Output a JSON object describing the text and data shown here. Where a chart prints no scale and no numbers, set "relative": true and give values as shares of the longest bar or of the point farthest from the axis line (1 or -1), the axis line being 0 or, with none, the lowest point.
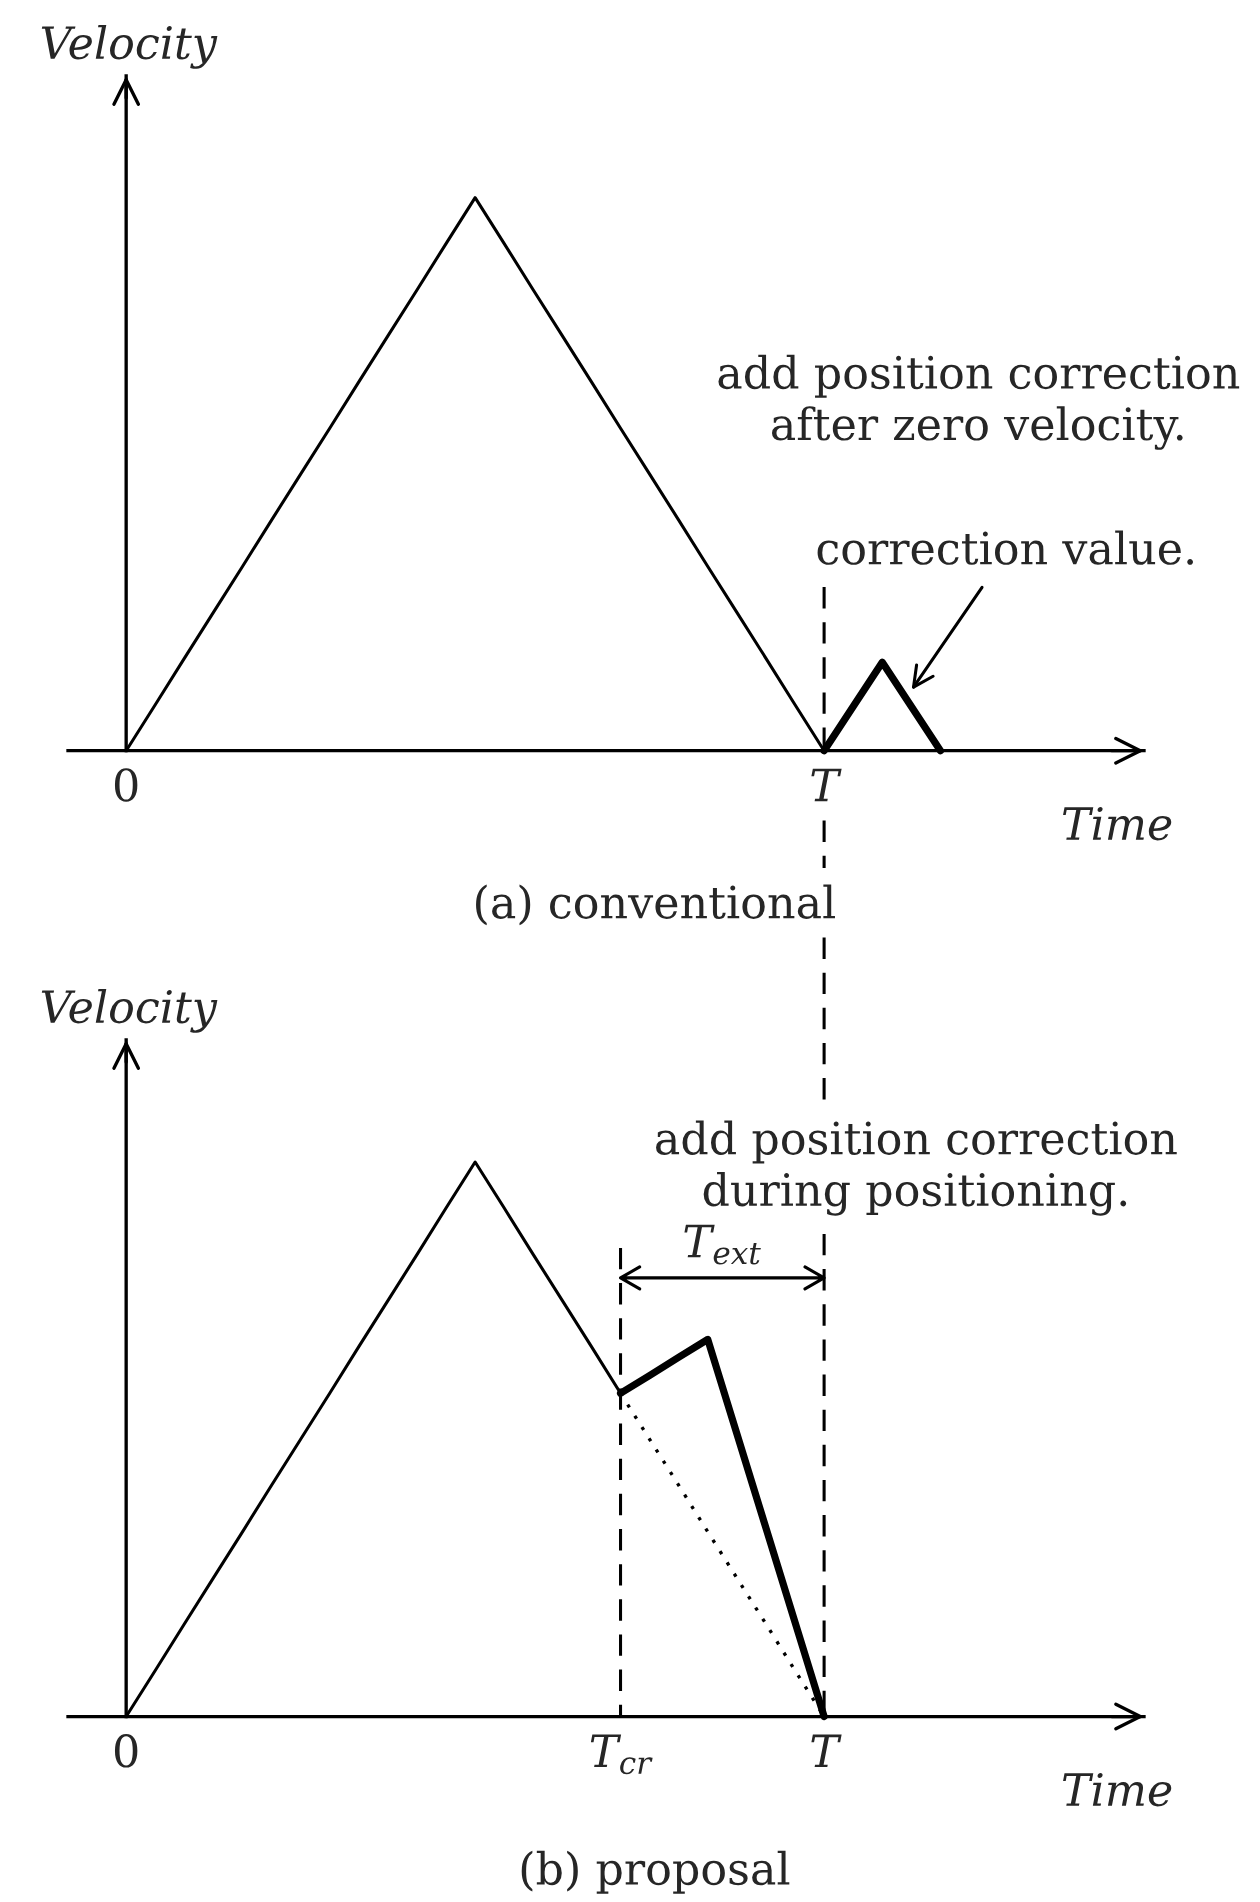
{
  "chart_data": [
    {
      "type": "line",
      "title": "(a) conventional",
      "xlabel": "Time",
      "ylabel": "Velocity",
      "relative": true,
      "tick_labels": "x",
      "line_style": "solid",
      "categories": [
        "0",
        null,
        null,
        null,
        null,
        null,
        null,
        null,
        null,
        null,
        null,
        null,
        null,
        null,
        null,
        null,
        null,
        null,
        null,
        null,
        null,
        null,
        null,
        null,
        "T",
        null,
        null,
        null,
        null,
        null,
        null,
        null,
        null,
        null,
        null,
        null
      ],
      "series": [
        {
          "color": "#000000",
          "values": [
            0,
            0.083,
            0.167,
            0.25,
            0.333,
            0.417,
            0.5,
            0.583,
            0.667,
            0.75,
            0.833,
            0.917,
            1,
            0.917,
            0.833,
            0.75,
            0.667,
            0.583,
            0.5,
            0.417,
            0.333,
            0.25,
            0.167,
            0.083,
            0,
            null,
            null,
            null,
            null,
            null,
            null,
            null,
            null,
            null,
            null,
            null
          ]
        },
        {
          "color": "#000000",
          "values": [
            null,
            null,
            null,
            null,
            null,
            null,
            null,
            null,
            null,
            null,
            null,
            null,
            null,
            null,
            null,
            null,
            null,
            null,
            null,
            null,
            null,
            null,
            null,
            null,
            0,
            0.08,
            0.16,
            0.08,
            0,
            null,
            null,
            null,
            null,
            null,
            null,
            null
          ]
        }
      ],
      "ref_lines": [
        {
          "axis": "x",
          "value": "T",
          "color": "#000000",
          "line_style": "dashed"
        }
      ],
      "annotations": [
        "add position correction\nafter zero velocity.",
        "correction value."
      ]
    },
    {
      "type": "line",
      "title": "(b) proposal",
      "xlabel": "Time",
      "ylabel": "Velocity",
      "relative": true,
      "tick_labels": "x",
      "line_style": "solid",
      "categories": [
        "0",
        null,
        null,
        null,
        null,
        null,
        null,
        null,
        null,
        null,
        null,
        null,
        null,
        null,
        null,
        null,
        null,
        "T$_{cr}$",
        null,
        null,
        null,
        null,
        null,
        null,
        "T",
        null,
        null,
        null,
        null,
        null,
        null,
        null,
        null,
        null,
        null,
        null
      ],
      "series": [
        {
          "color": "#000000",
          "values": [
            0,
            0.083,
            0.167,
            0.25,
            0.333,
            0.417,
            0.5,
            0.583,
            0.667,
            0.75,
            0.833,
            0.917,
            1,
            0.917,
            0.833,
            0.75,
            0.667,
            0.583,
            null,
            null,
            null,
            null,
            null,
            null,
            null,
            null,
            null,
            null,
            null,
            null,
            null,
            null,
            null,
            null,
            null,
            null
          ]
        },
        {
          "color": "#000000",
          "values": [
            null,
            null,
            null,
            null,
            null,
            null,
            null,
            null,
            null,
            null,
            null,
            null,
            null,
            null,
            null,
            null,
            null,
            0.583,
            0.615,
            0.648,
            0.68,
            0.51,
            0.34,
            0.17,
            0,
            null,
            null,
            null,
            null,
            null,
            null,
            null,
            null,
            null,
            null,
            null
          ]
        },
        {
          "color": "#000000",
          "line_style": "dotted",
          "values": [
            null,
            null,
            null,
            null,
            null,
            null,
            null,
            null,
            null,
            null,
            null,
            null,
            null,
            null,
            null,
            null,
            null,
            0.583,
            0.5,
            0.417,
            0.333,
            0.25,
            0.167,
            0.083,
            0,
            null,
            null,
            null,
            null,
            null,
            null,
            null,
            null,
            null,
            null,
            null
          ]
        }
      ],
      "ref_lines": [
        {
          "axis": "x",
          "value": "T$_{cr}$",
          "color": "#000000",
          "line_style": "dashed"
        },
        {
          "axis": "x",
          "value": "T",
          "color": "#000000",
          "line_style": "dashed"
        }
      ],
      "annotations": [
        "add position correction\nduring positioning.",
        "T$_{ext}$"
      ]
    }
  ]
}
